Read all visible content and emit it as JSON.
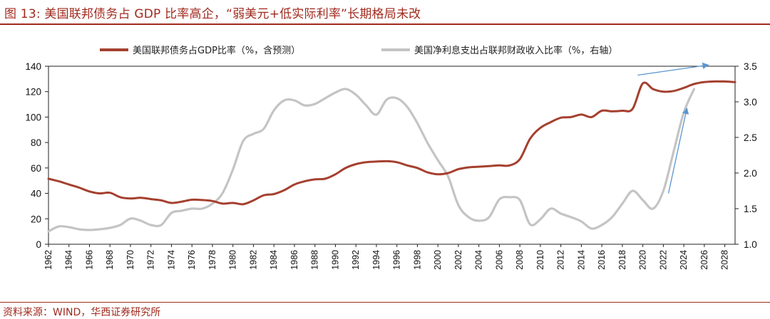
{
  "figure": {
    "title": "图 13:  美国联邦债务占 GDP 比率高企，“弱美元+低实际利率”长期格局未改",
    "source": "资料来源：WIND，华西证券研究所"
  },
  "colors": {
    "accent": "#a02a1e",
    "debt_line": "#a5402f",
    "interest_line": "#c4c4c4",
    "arrow": "#5b95d0"
  },
  "chart_data": {
    "type": "line",
    "x_range": [
      1962,
      2029
    ],
    "x_ticks": [
      1962,
      1964,
      1966,
      1968,
      1970,
      1972,
      1974,
      1976,
      1978,
      1980,
      1982,
      1984,
      1986,
      1988,
      1990,
      1992,
      1994,
      1996,
      1998,
      2000,
      2002,
      2004,
      2006,
      2008,
      2010,
      2012,
      2014,
      2016,
      2018,
      2020,
      2022,
      2024,
      2026,
      2028
    ],
    "y_left": {
      "min": 0,
      "max": 140,
      "ticks": [
        0,
        20,
        40,
        60,
        80,
        100,
        120,
        140
      ]
    },
    "y_right": {
      "min": 1.0,
      "max": 3.5,
      "ticks": [
        "1.0",
        "1.5",
        "2.0",
        "2.5",
        "3.0",
        "3.5"
      ]
    },
    "legend_position": "top",
    "grid": false,
    "series": [
      {
        "name": "美国联邦债务占GDP比率（%，含预测）",
        "axis": "left",
        "color": "#a5402f",
        "points": [
          [
            1962,
            51.5
          ],
          [
            1963,
            49.5
          ],
          [
            1964,
            47
          ],
          [
            1965,
            44.5
          ],
          [
            1966,
            41.5
          ],
          [
            1967,
            40
          ],
          [
            1968,
            40.5
          ],
          [
            1969,
            37
          ],
          [
            1970,
            36
          ],
          [
            1971,
            36.5
          ],
          [
            1972,
            35.5
          ],
          [
            1973,
            34.5
          ],
          [
            1974,
            32.5
          ],
          [
            1975,
            33.5
          ],
          [
            1976,
            35
          ],
          [
            1977,
            34.8
          ],
          [
            1978,
            34
          ],
          [
            1979,
            32
          ],
          [
            1980,
            32.5
          ],
          [
            1981,
            31.5
          ],
          [
            1982,
            34.5
          ],
          [
            1983,
            38.5
          ],
          [
            1984,
            39.5
          ],
          [
            1985,
            42.5
          ],
          [
            1986,
            47
          ],
          [
            1987,
            49.5
          ],
          [
            1988,
            51
          ],
          [
            1989,
            51.5
          ],
          [
            1990,
            55
          ],
          [
            1991,
            60
          ],
          [
            1992,
            63
          ],
          [
            1993,
            64.5
          ],
          [
            1994,
            65
          ],
          [
            1995,
            65.3
          ],
          [
            1996,
            64.5
          ],
          [
            1997,
            62
          ],
          [
            1998,
            60
          ],
          [
            1999,
            56.5
          ],
          [
            2000,
            55
          ],
          [
            2001,
            56
          ],
          [
            2002,
            59
          ],
          [
            2003,
            60.5
          ],
          [
            2004,
            61
          ],
          [
            2005,
            61.5
          ],
          [
            2006,
            62
          ],
          [
            2007,
            62
          ],
          [
            2008,
            67
          ],
          [
            2009,
            83
          ],
          [
            2010,
            91.5
          ],
          [
            2011,
            96
          ],
          [
            2012,
            99.5
          ],
          [
            2013,
            100
          ],
          [
            2014,
            102
          ],
          [
            2015,
            100
          ],
          [
            2016,
            105
          ],
          [
            2017,
            104.5
          ],
          [
            2018,
            105
          ],
          [
            2019,
            106.5
          ],
          [
            2020,
            126.5
          ],
          [
            2021,
            122
          ],
          [
            2022,
            120
          ],
          [
            2023,
            120.5
          ],
          [
            2024,
            123
          ],
          [
            2025,
            126
          ],
          [
            2026,
            127.5
          ],
          [
            2027,
            128
          ],
          [
            2028,
            128
          ],
          [
            2029,
            127.5
          ]
        ]
      },
      {
        "name": "美国净利息支出占联邦财政收入比率（%，右轴）",
        "axis": "right",
        "color": "#c4c4c4",
        "points": [
          [
            1962,
            1.18
          ],
          [
            1963,
            1.25
          ],
          [
            1964,
            1.24
          ],
          [
            1965,
            1.21
          ],
          [
            1966,
            1.2
          ],
          [
            1967,
            1.21
          ],
          [
            1968,
            1.23
          ],
          [
            1969,
            1.27
          ],
          [
            1970,
            1.36
          ],
          [
            1971,
            1.33
          ],
          [
            1972,
            1.27
          ],
          [
            1973,
            1.27
          ],
          [
            1974,
            1.44
          ],
          [
            1975,
            1.47
          ],
          [
            1976,
            1.5
          ],
          [
            1977,
            1.5
          ],
          [
            1978,
            1.57
          ],
          [
            1979,
            1.72
          ],
          [
            1980,
            2.05
          ],
          [
            1981,
            2.45
          ],
          [
            1982,
            2.55
          ],
          [
            1983,
            2.62
          ],
          [
            1984,
            2.88
          ],
          [
            1985,
            3.02
          ],
          [
            1986,
            3.02
          ],
          [
            1987,
            2.95
          ],
          [
            1988,
            2.97
          ],
          [
            1989,
            3.05
          ],
          [
            1990,
            3.13
          ],
          [
            1991,
            3.18
          ],
          [
            1992,
            3.1
          ],
          [
            1993,
            2.95
          ],
          [
            1994,
            2.82
          ],
          [
            1995,
            3.03
          ],
          [
            1996,
            3.05
          ],
          [
            1997,
            2.93
          ],
          [
            1998,
            2.7
          ],
          [
            1999,
            2.42
          ],
          [
            2000,
            2.18
          ],
          [
            2001,
            1.95
          ],
          [
            2002,
            1.55
          ],
          [
            2003,
            1.38
          ],
          [
            2004,
            1.33
          ],
          [
            2005,
            1.38
          ],
          [
            2006,
            1.63
          ],
          [
            2007,
            1.66
          ],
          [
            2008,
            1.62
          ],
          [
            2009,
            1.28
          ],
          [
            2010,
            1.35
          ],
          [
            2011,
            1.5
          ],
          [
            2012,
            1.43
          ],
          [
            2013,
            1.38
          ],
          [
            2014,
            1.32
          ],
          [
            2015,
            1.22
          ],
          [
            2016,
            1.27
          ],
          [
            2017,
            1.38
          ],
          [
            2018,
            1.57
          ],
          [
            2019,
            1.75
          ],
          [
            2020,
            1.62
          ],
          [
            2021,
            1.5
          ],
          [
            2022,
            1.75
          ],
          [
            2023,
            2.3
          ],
          [
            2024,
            2.85
          ],
          [
            2025,
            3.18
          ]
        ]
      }
    ],
    "annotations": [
      {
        "type": "arrow",
        "color": "#5b95d0",
        "from": [
          2019.5,
          133
        ],
        "to": [
          2026.4,
          141
        ]
      },
      {
        "type": "arrow",
        "color": "#5b95d0",
        "from": [
          2022.5,
          40
        ],
        "to": [
          2024.3,
          107
        ]
      }
    ]
  }
}
